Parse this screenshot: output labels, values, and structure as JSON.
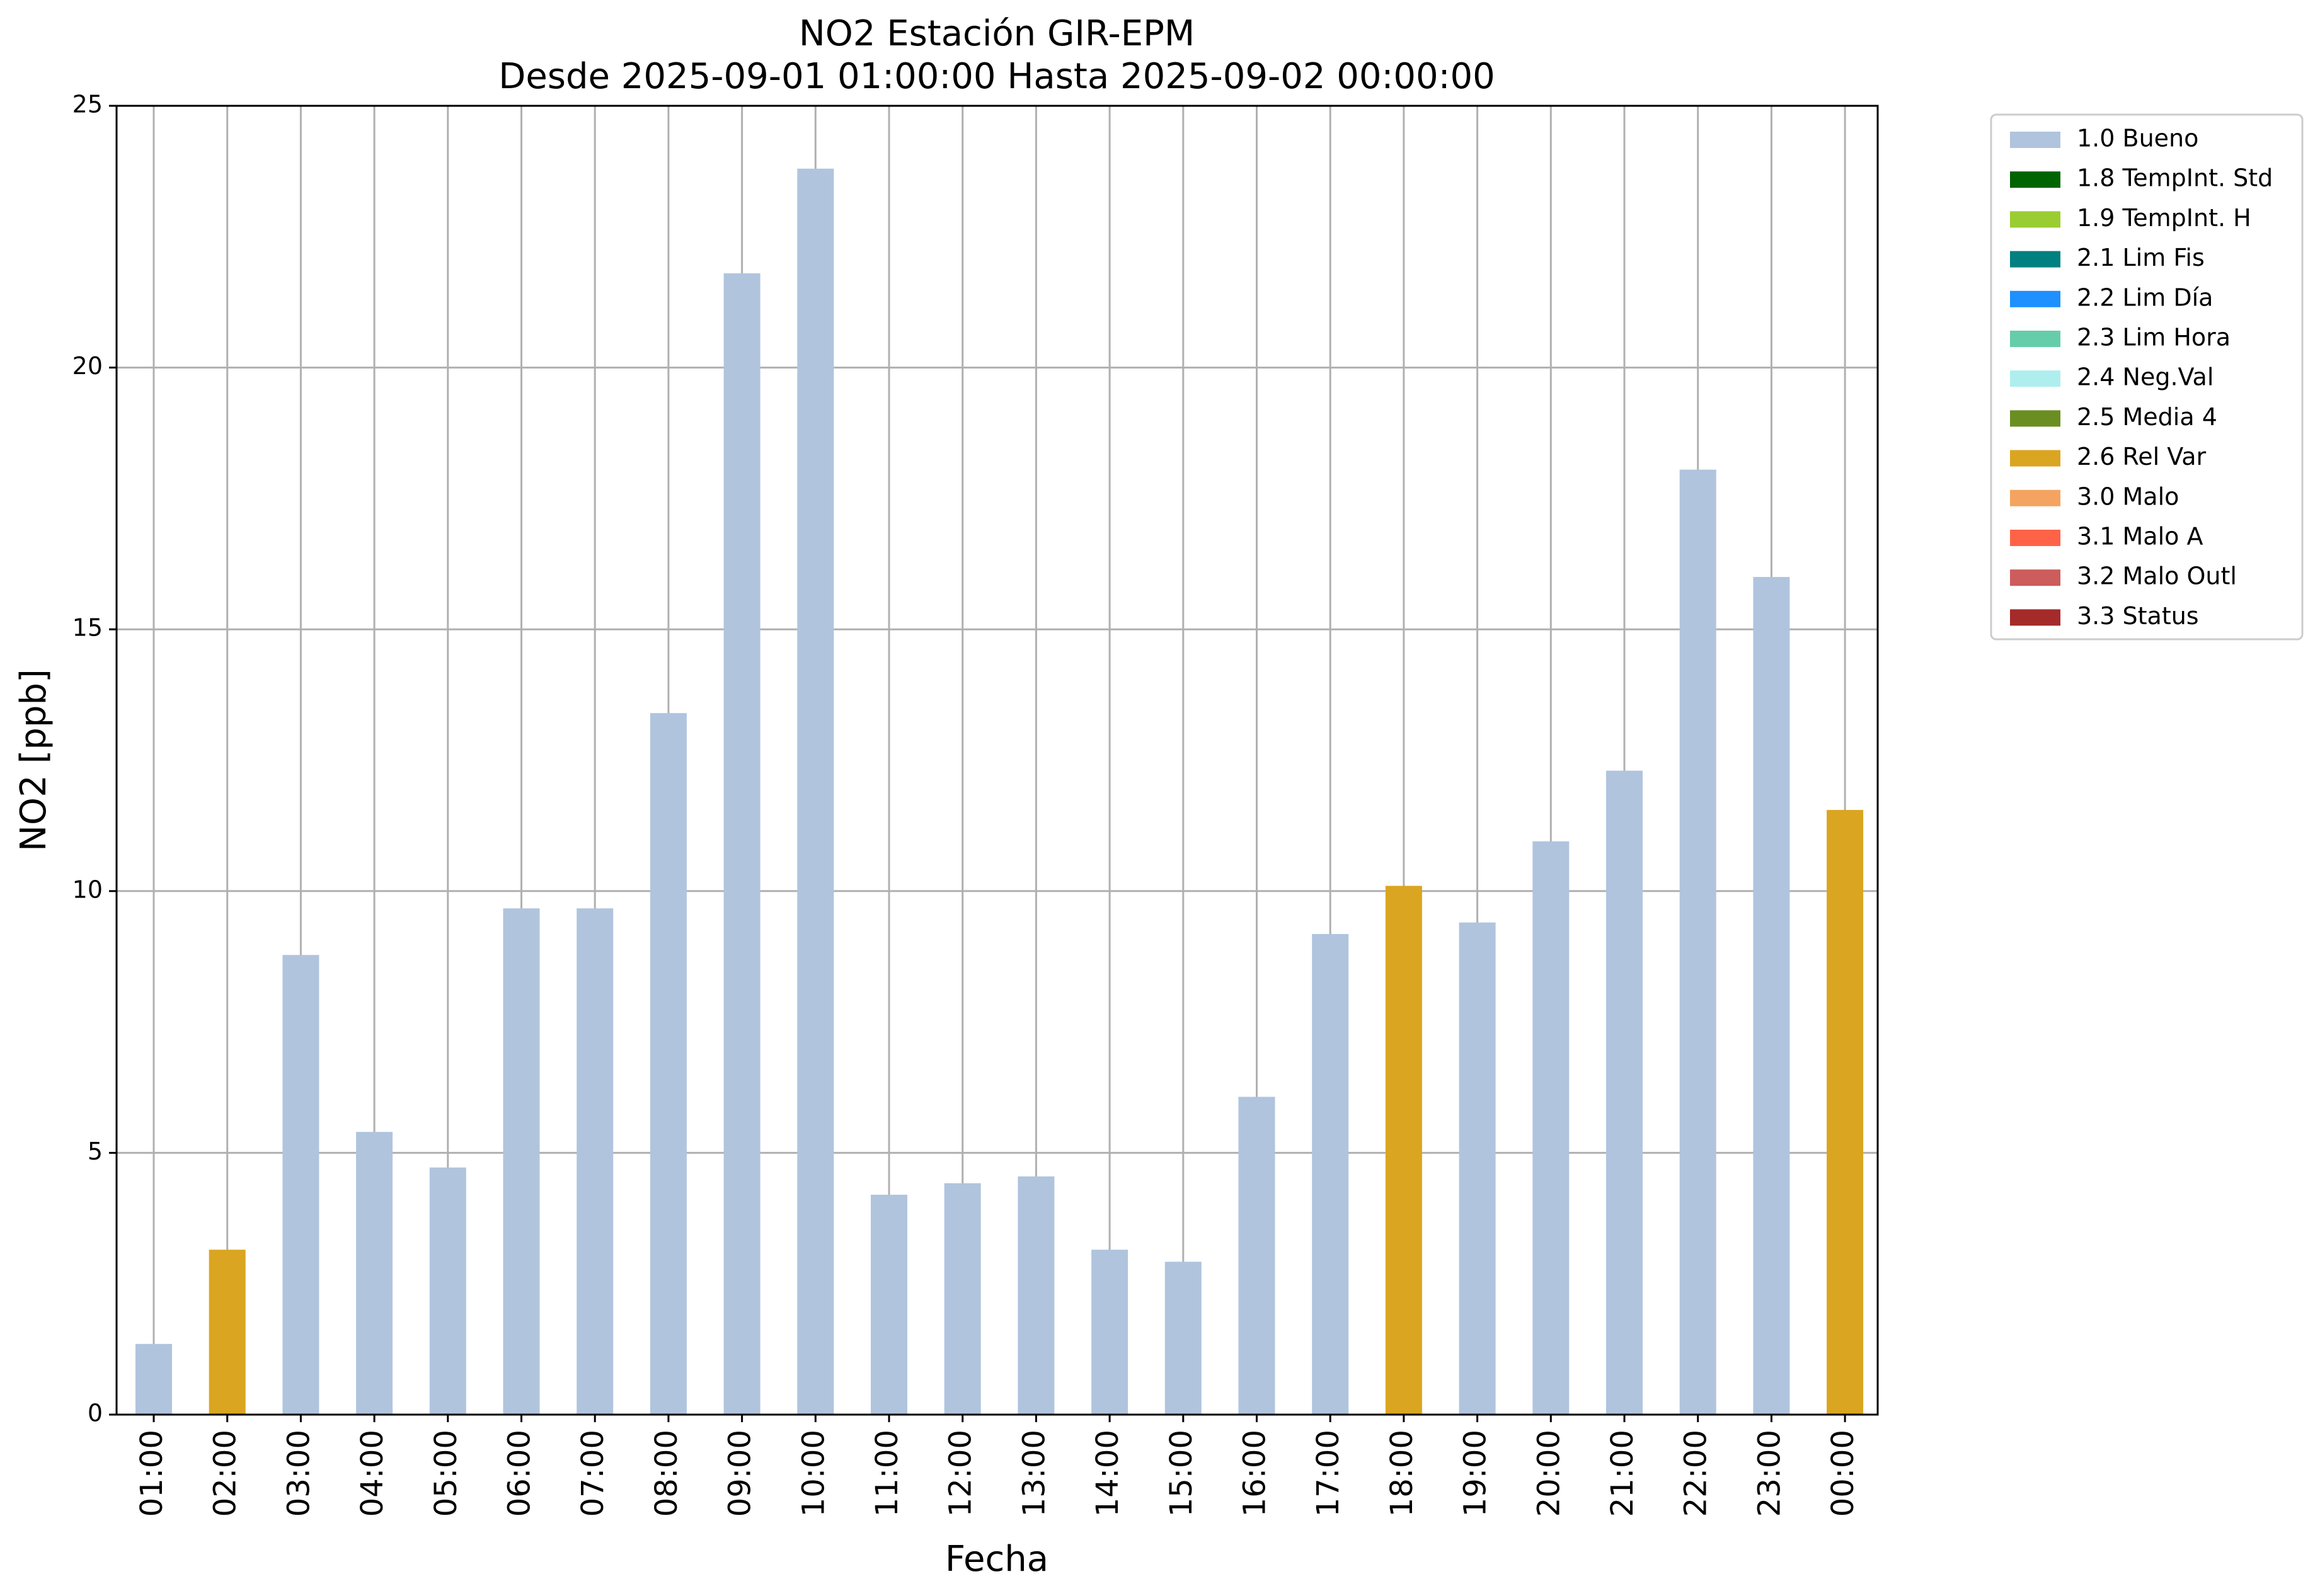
{
  "chart_data": {
    "type": "bar",
    "title": "NO2 Estación GIR-EPM",
    "subtitle": "Desde 2025-09-01 01:00:00 Hasta 2025-09-02 00:00:00",
    "xlabel": "Fecha",
    "ylabel": "NO2 [ppb]",
    "ylim": [
      0,
      25
    ],
    "yticks": [
      "0",
      "5",
      "10",
      "15",
      "20",
      "25"
    ],
    "grid": true,
    "legend_position": "outside-top-right",
    "categories": [
      "01:00",
      "02:00",
      "03:00",
      "04:00",
      "05:00",
      "06:00",
      "07:00",
      "08:00",
      "09:00",
      "10:00",
      "11:00",
      "12:00",
      "13:00",
      "14:00",
      "15:00",
      "16:00",
      "17:00",
      "18:00",
      "19:00",
      "20:00",
      "21:00",
      "22:00",
      "23:00",
      "00:00"
    ],
    "values": [
      1.35,
      3.15,
      8.78,
      5.4,
      4.72,
      9.67,
      9.67,
      13.4,
      21.8,
      23.8,
      4.2,
      4.42,
      4.55,
      3.15,
      2.92,
      6.07,
      9.18,
      10.1,
      9.4,
      10.95,
      12.3,
      18.05,
      16.0,
      11.55
    ],
    "flags": [
      "1.0 Bueno",
      "2.6 Rel Var",
      "1.0 Bueno",
      "1.0 Bueno",
      "1.0 Bueno",
      "1.0 Bueno",
      "1.0 Bueno",
      "1.0 Bueno",
      "1.0 Bueno",
      "1.0 Bueno",
      "1.0 Bueno",
      "1.0 Bueno",
      "1.0 Bueno",
      "1.0 Bueno",
      "1.0 Bueno",
      "1.0 Bueno",
      "1.0 Bueno",
      "2.6 Rel Var",
      "1.0 Bueno",
      "1.0 Bueno",
      "1.0 Bueno",
      "1.0 Bueno",
      "1.0 Bueno",
      "2.6 Rel Var"
    ],
    "legend": [
      {
        "label": "1.0 Bueno",
        "color": "#b0c4de"
      },
      {
        "label": "1.8 TempInt. Std",
        "color": "#006400"
      },
      {
        "label": "1.9 TempInt. H",
        "color": "#9acd32"
      },
      {
        "label": "2.1 Lim Fis",
        "color": "#008080"
      },
      {
        "label": "2.2 Lim Día",
        "color": "#1e90ff"
      },
      {
        "label": "2.3 Lim Hora",
        "color": "#66cdaa"
      },
      {
        "label": "2.4 Neg.Val",
        "color": "#afeeee"
      },
      {
        "label": "2.5 Media 4",
        "color": "#6b8e23"
      },
      {
        "label": "2.6 Rel Var",
        "color": "#daa520"
      },
      {
        "label": "3.0 Malo",
        "color": "#f4a460"
      },
      {
        "label": "3.1 Malo A",
        "color": "#ff6347"
      },
      {
        "label": "3.2 Malo Outl",
        "color": "#cd5c5c"
      },
      {
        "label": "3.3 Status",
        "color": "#a52a2a"
      }
    ]
  }
}
